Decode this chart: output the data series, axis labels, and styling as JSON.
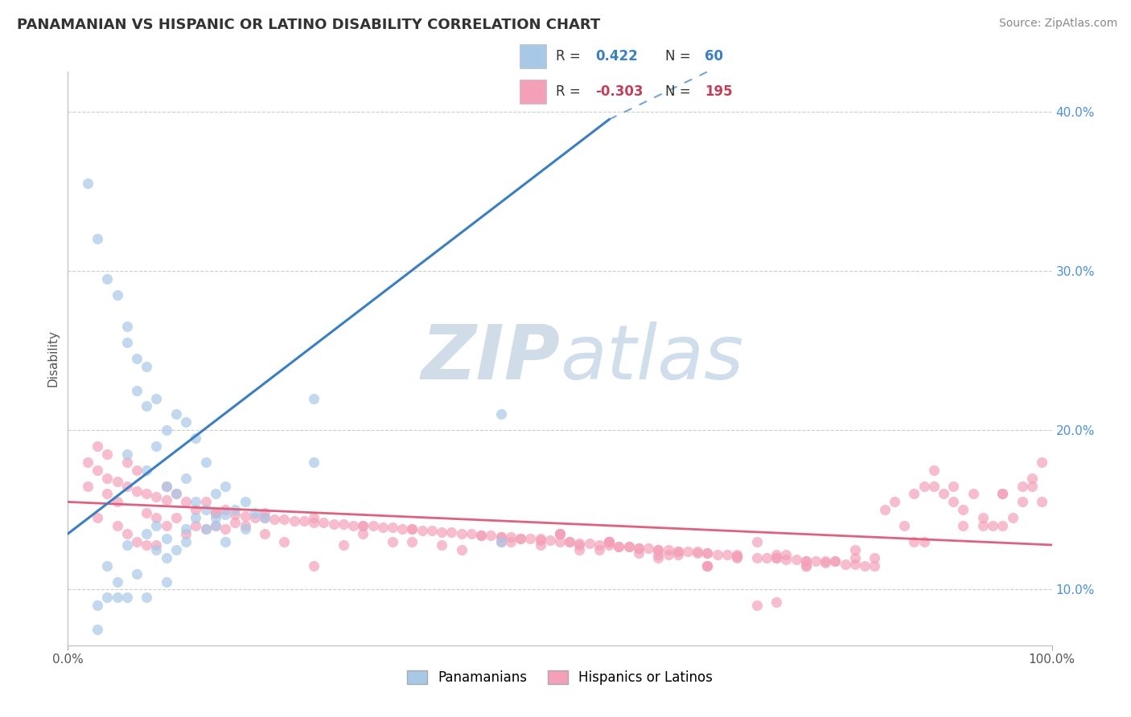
{
  "title": "PANAMANIAN VS HISPANIC OR LATINO DISABILITY CORRELATION CHART",
  "source": "Source: ZipAtlas.com",
  "ylabel": "Disability",
  "xlim": [
    0.0,
    1.0
  ],
  "ylim": [
    0.065,
    0.425
  ],
  "yticks": [
    0.1,
    0.2,
    0.3,
    0.4
  ],
  "ytick_labels": [
    "10.0%",
    "20.0%",
    "30.0%",
    "40.0%"
  ],
  "blue_color": "#a8c8e8",
  "pink_color": "#f4a0b8",
  "blue_line_color": "#3a7fc1",
  "pink_line_color": "#e06080",
  "watermark_zip": "ZIP",
  "watermark_atlas": "atlas",
  "watermark_color": "#d0dce8",
  "legend_label_blue": "Panamanians",
  "legend_label_pink": "Hispanics or Latinos",
  "blue_R": "0.422",
  "blue_N": "60",
  "pink_R": "-0.303",
  "pink_N": "195",
  "blue_scatter_x": [
    0.02,
    0.03,
    0.04,
    0.05,
    0.06,
    0.06,
    0.06,
    0.07,
    0.07,
    0.08,
    0.08,
    0.08,
    0.09,
    0.09,
    0.09,
    0.1,
    0.1,
    0.1,
    0.1,
    0.11,
    0.11,
    0.12,
    0.12,
    0.12,
    0.13,
    0.13,
    0.14,
    0.14,
    0.15,
    0.15,
    0.16,
    0.16,
    0.17,
    0.18,
    0.18,
    0.19,
    0.2,
    0.03,
    0.04,
    0.05,
    0.06,
    0.07,
    0.08,
    0.09,
    0.1,
    0.11,
    0.12,
    0.13,
    0.14,
    0.15,
    0.16,
    0.04,
    0.05,
    0.06,
    0.08,
    0.44,
    0.44,
    0.03,
    0.25,
    0.25
  ],
  "blue_scatter_y": [
    0.355,
    0.32,
    0.295,
    0.285,
    0.265,
    0.255,
    0.185,
    0.245,
    0.225,
    0.24,
    0.215,
    0.175,
    0.22,
    0.19,
    0.14,
    0.2,
    0.165,
    0.132,
    0.12,
    0.21,
    0.16,
    0.205,
    0.17,
    0.13,
    0.195,
    0.155,
    0.18,
    0.15,
    0.16,
    0.145,
    0.165,
    0.147,
    0.15,
    0.155,
    0.138,
    0.148,
    0.145,
    0.09,
    0.115,
    0.105,
    0.128,
    0.11,
    0.135,
    0.125,
    0.105,
    0.125,
    0.138,
    0.145,
    0.138,
    0.14,
    0.13,
    0.095,
    0.095,
    0.095,
    0.095,
    0.21,
    0.13,
    0.075,
    0.22,
    0.18
  ],
  "pink_scatter_x": [
    0.02,
    0.02,
    0.03,
    0.03,
    0.03,
    0.04,
    0.04,
    0.04,
    0.05,
    0.05,
    0.05,
    0.06,
    0.06,
    0.06,
    0.07,
    0.07,
    0.07,
    0.08,
    0.08,
    0.08,
    0.09,
    0.09,
    0.09,
    0.1,
    0.1,
    0.11,
    0.11,
    0.12,
    0.12,
    0.13,
    0.13,
    0.14,
    0.14,
    0.15,
    0.15,
    0.16,
    0.16,
    0.17,
    0.17,
    0.18,
    0.18,
    0.19,
    0.2,
    0.2,
    0.21,
    0.22,
    0.22,
    0.23,
    0.24,
    0.25,
    0.25,
    0.26,
    0.27,
    0.28,
    0.28,
    0.29,
    0.3,
    0.3,
    0.31,
    0.32,
    0.33,
    0.33,
    0.34,
    0.35,
    0.35,
    0.36,
    0.37,
    0.38,
    0.38,
    0.39,
    0.4,
    0.4,
    0.41,
    0.42,
    0.43,
    0.44,
    0.44,
    0.45,
    0.45,
    0.46,
    0.47,
    0.48,
    0.48,
    0.49,
    0.5,
    0.5,
    0.51,
    0.52,
    0.52,
    0.53,
    0.54,
    0.55,
    0.55,
    0.56,
    0.57,
    0.58,
    0.58,
    0.59,
    0.6,
    0.61,
    0.62,
    0.62,
    0.63,
    0.64,
    0.65,
    0.65,
    0.66,
    0.67,
    0.68,
    0.68,
    0.7,
    0.7,
    0.71,
    0.72,
    0.72,
    0.73,
    0.74,
    0.75,
    0.75,
    0.76,
    0.77,
    0.78,
    0.79,
    0.8,
    0.8,
    0.81,
    0.82,
    0.83,
    0.84,
    0.85,
    0.86,
    0.86,
    0.87,
    0.88,
    0.88,
    0.89,
    0.9,
    0.9,
    0.91,
    0.92,
    0.93,
    0.93,
    0.94,
    0.95,
    0.95,
    0.96,
    0.97,
    0.97,
    0.98,
    0.98,
    0.99,
    0.99,
    0.5,
    0.55,
    0.6,
    0.65,
    0.7,
    0.75,
    0.44,
    0.48,
    0.52,
    0.55,
    0.58,
    0.62,
    0.65,
    0.68,
    0.72,
    0.75,
    0.78,
    0.8,
    0.72,
    0.56,
    0.6,
    0.64,
    0.68,
    0.73,
    0.77,
    0.82,
    0.87,
    0.91,
    0.95,
    0.5,
    0.55,
    0.6,
    0.65,
    0.42,
    0.46,
    0.51,
    0.54,
    0.57,
    0.61,
    0.1,
    0.15,
    0.2,
    0.25,
    0.3,
    0.35
  ],
  "pink_scatter_y": [
    0.18,
    0.165,
    0.19,
    0.175,
    0.145,
    0.185,
    0.17,
    0.16,
    0.168,
    0.155,
    0.14,
    0.18,
    0.165,
    0.135,
    0.175,
    0.162,
    0.13,
    0.16,
    0.148,
    0.128,
    0.158,
    0.145,
    0.128,
    0.165,
    0.14,
    0.16,
    0.145,
    0.155,
    0.135,
    0.15,
    0.14,
    0.155,
    0.138,
    0.148,
    0.14,
    0.15,
    0.138,
    0.147,
    0.142,
    0.146,
    0.14,
    0.145,
    0.148,
    0.135,
    0.144,
    0.144,
    0.13,
    0.143,
    0.143,
    0.145,
    0.115,
    0.142,
    0.141,
    0.141,
    0.128,
    0.14,
    0.14,
    0.135,
    0.14,
    0.139,
    0.139,
    0.13,
    0.138,
    0.138,
    0.13,
    0.137,
    0.137,
    0.136,
    0.128,
    0.136,
    0.135,
    0.125,
    0.135,
    0.134,
    0.134,
    0.133,
    0.13,
    0.133,
    0.13,
    0.132,
    0.132,
    0.131,
    0.128,
    0.131,
    0.13,
    0.135,
    0.13,
    0.129,
    0.125,
    0.129,
    0.128,
    0.128,
    0.13,
    0.127,
    0.127,
    0.126,
    0.123,
    0.126,
    0.125,
    0.125,
    0.124,
    0.122,
    0.124,
    0.123,
    0.123,
    0.115,
    0.122,
    0.122,
    0.121,
    0.12,
    0.12,
    0.13,
    0.12,
    0.12,
    0.122,
    0.119,
    0.119,
    0.118,
    0.115,
    0.118,
    0.117,
    0.118,
    0.116,
    0.116,
    0.125,
    0.115,
    0.115,
    0.15,
    0.155,
    0.14,
    0.13,
    0.16,
    0.165,
    0.175,
    0.165,
    0.16,
    0.155,
    0.165,
    0.15,
    0.16,
    0.145,
    0.14,
    0.14,
    0.16,
    0.14,
    0.145,
    0.165,
    0.155,
    0.17,
    0.165,
    0.18,
    0.155,
    0.135,
    0.13,
    0.12,
    0.115,
    0.09,
    0.115,
    0.133,
    0.132,
    0.128,
    0.13,
    0.126,
    0.124,
    0.123,
    0.121,
    0.12,
    0.118,
    0.118,
    0.12,
    0.092,
    0.127,
    0.125,
    0.124,
    0.122,
    0.122,
    0.118,
    0.12,
    0.13,
    0.14,
    0.16,
    0.135,
    0.13,
    0.122,
    0.115,
    0.134,
    0.132,
    0.13,
    0.125,
    0.127,
    0.122,
    0.156,
    0.148,
    0.145,
    0.142,
    0.14,
    0.138
  ]
}
